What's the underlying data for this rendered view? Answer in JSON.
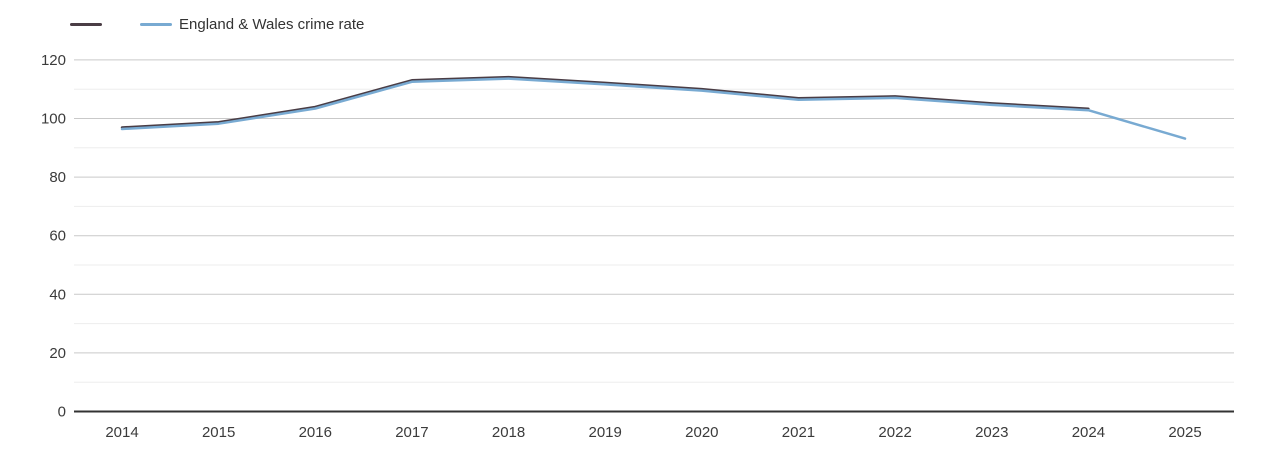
{
  "legend": {
    "items": [
      {
        "label": "",
        "color": "#4a3d45"
      },
      {
        "label": "England & Wales crime rate",
        "color": "#78aad2"
      }
    ]
  },
  "colors": {
    "background": "#ffffff",
    "axis_line": "#333333",
    "major_grid": "#c9c9c9",
    "minor_grid": "#ededed",
    "tick_text": "#3b3b3b"
  },
  "chart_data": {
    "type": "line",
    "title": "",
    "xlabel": "",
    "ylabel": "",
    "categories": [
      "2014",
      "2015",
      "2016",
      "2017",
      "2018",
      "2019",
      "2020",
      "2021",
      "2022",
      "2023",
      "2024",
      "2025"
    ],
    "series": [
      {
        "name": "",
        "color": "#4a3d45",
        "values": [
          96.6,
          98.4,
          103.6,
          112.7,
          113.8,
          111.8,
          109.7,
          106.6,
          107.2,
          104.8,
          103.0,
          null
        ]
      },
      {
        "name": "England & Wales crime rate",
        "color": "#78aad2",
        "values": [
          96.6,
          98.4,
          103.6,
          112.7,
          113.8,
          111.8,
          109.7,
          106.6,
          107.2,
          104.8,
          103.0,
          93.3
        ]
      }
    ],
    "ylim": [
      0,
      125
    ],
    "yticks": [
      0,
      20,
      40,
      60,
      80,
      100,
      120
    ],
    "minor_yticks": [
      10,
      30,
      50,
      70,
      90,
      110
    ],
    "grid": "horizontal",
    "legend_position": "top-left"
  }
}
